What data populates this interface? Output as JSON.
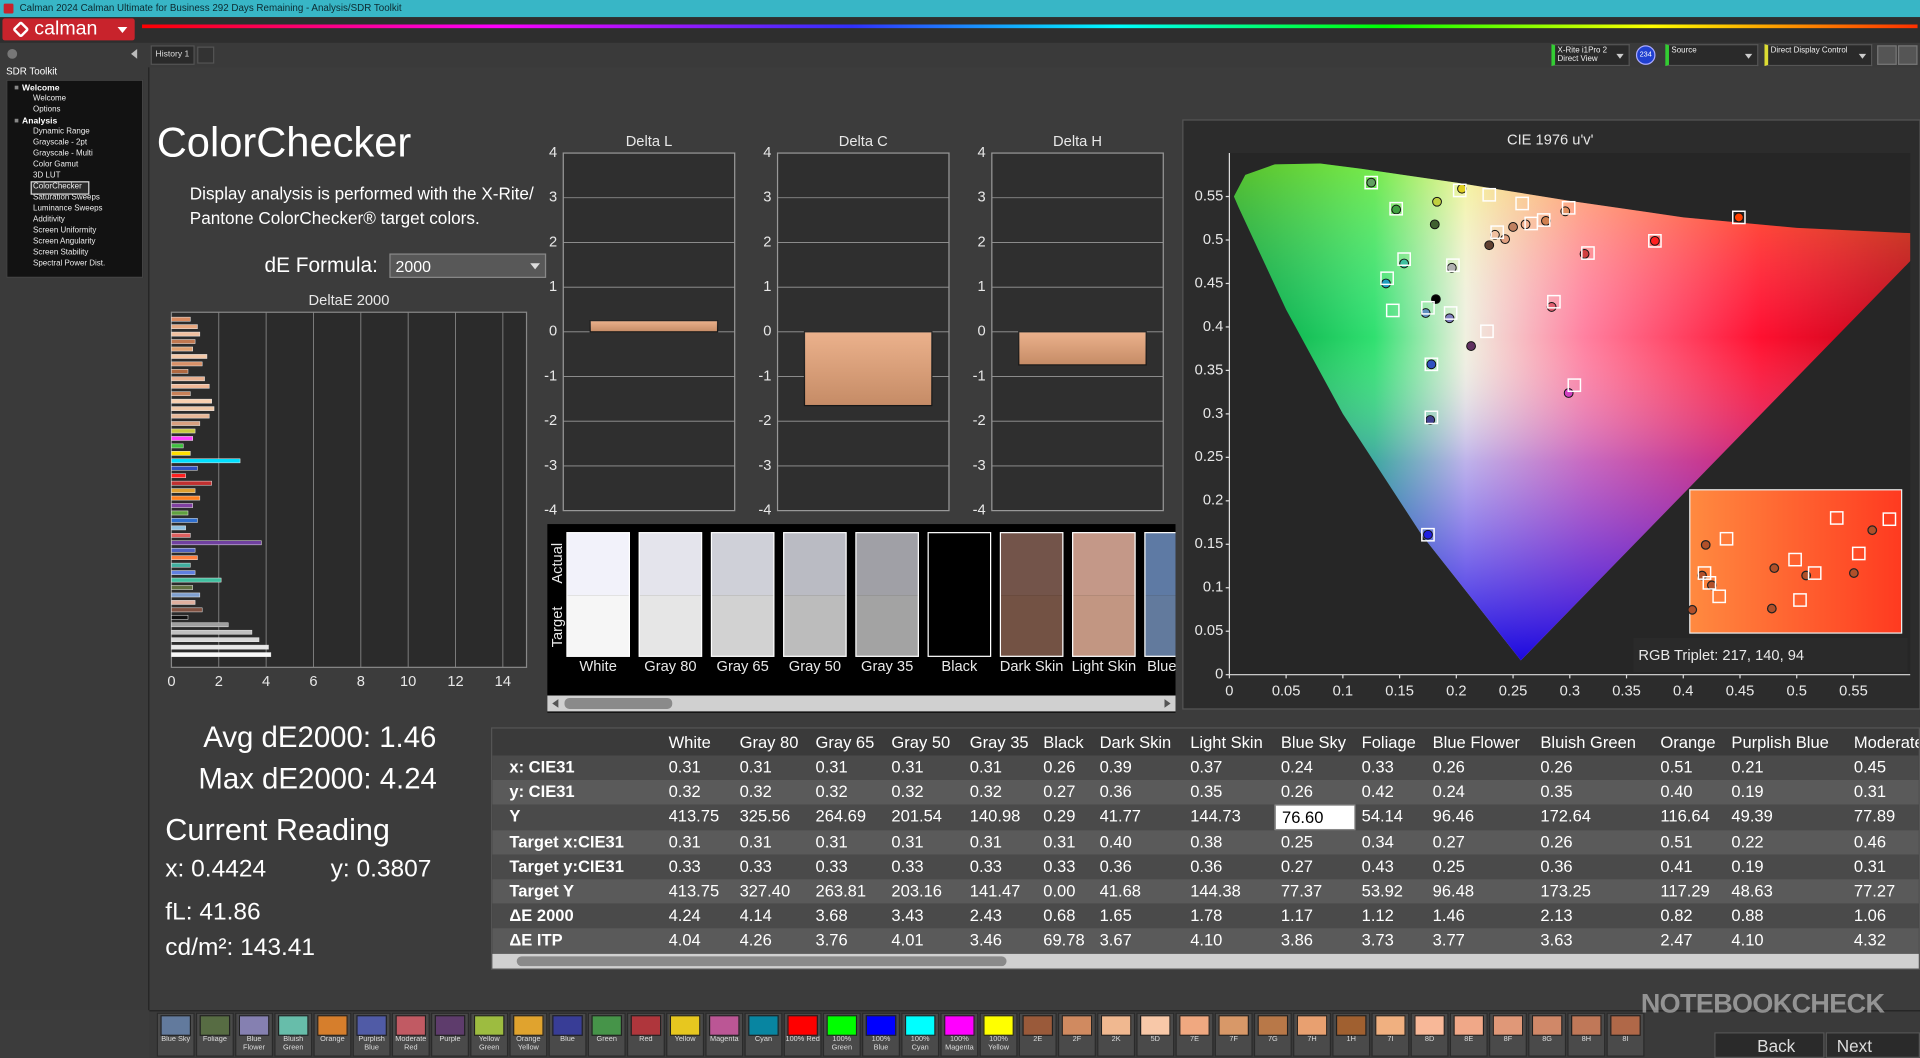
{
  "window": {
    "title": "Calman 2024 Calman Ultimate for Business 292 Days Remaining - Analysis/SDR Toolkit",
    "logo": "calman"
  },
  "tabs": [
    "History 1"
  ],
  "toolbar": {
    "meter": [
      "X-Rite i1Pro 2",
      "Direct View"
    ],
    "badge": "234",
    "source": "Source",
    "display": "Direct Display Control"
  },
  "sidebar": {
    "title": "SDR Toolkit",
    "groups": [
      {
        "name": "Welcome",
        "items": [
          "Welcome",
          "Options"
        ]
      },
      {
        "name": "Analysis",
        "items": [
          "Dynamic Range",
          "Grayscale - 2pt",
          "Grayscale - Multi",
          "Color Gamut",
          "3D LUT",
          "ColorChecker",
          "Saturation Sweeps",
          "Luminance Sweeps",
          "Additivity",
          "Screen Uniformity",
          "Screen Angularity",
          "Screen Stability",
          "Spectral Power Dist."
        ]
      }
    ]
  },
  "page": {
    "heading": "ColorChecker",
    "description": "Display analysis is performed with the X-Rite/ Pantone ColorChecker® target colors.",
    "formula_label": "dE Formula:",
    "formula_value": "2000"
  },
  "deltae_chart": {
    "type": "bar",
    "orientation": "horizontal",
    "title": "DeltaE 2000",
    "xlim": [
      0,
      15
    ],
    "xticks": [
      0,
      2,
      4,
      6,
      8,
      10,
      12,
      14
    ],
    "grid": true,
    "values": [
      0.8,
      1.1,
      1.2,
      1.0,
      0.9,
      1.5,
      1.3,
      0.7,
      1.4,
      1.6,
      0.8,
      1.7,
      1.8,
      1.6,
      1.2,
      1.0,
      0.9,
      0.5,
      0.8,
      2.9,
      1.1,
      0.6,
      1.7,
      1.0,
      1.2,
      0.9,
      0.7,
      1.1,
      0.6,
      0.8,
      3.8,
      1.0,
      1.1,
      0.8,
      1.0,
      2.1,
      0.9,
      1.2,
      1.0,
      1.3,
      0.7,
      2.4,
      3.4,
      3.7,
      4.1,
      4.2
    ],
    "colors": [
      "#d88a60",
      "#e8a880",
      "#f0c0a0",
      "#c07850",
      "#e0a070",
      "#f4c8a8",
      "#d89068",
      "#b06840",
      "#e8b090",
      "#f0b898",
      "#c88058",
      "#f8d0b0",
      "#f0c8a8",
      "#e8b898",
      "#d8a080",
      "#c8c840",
      "#ff40ff",
      "#40c040",
      "#ffe000",
      "#00e0ff",
      "#3050c0",
      "#ff2020",
      "#c03030",
      "#e0a030",
      "#ff8020",
      "#8040a0",
      "#60a040",
      "#3070d0",
      "#90c0e0",
      "#e06060",
      "#7040a0",
      "#5060c0",
      "#ff8040",
      "#40b0a0",
      "#6080e0",
      "#40c0a0",
      "#607040",
      "#80a0d0",
      "#e0b0a0",
      "#805040",
      "#101010",
      "#a0a0a0",
      "#c0c0c0",
      "#d8d8d8",
      "#e8e8e8",
      "#f8f8f8"
    ]
  },
  "delta_charts": [
    {
      "type": "bar",
      "title": "Delta L",
      "values": [
        0.25
      ],
      "color": "#e8a478",
      "ylim": [
        -4,
        4
      ],
      "yticks": [
        -4,
        -3,
        -2,
        -1,
        0,
        1,
        2,
        3,
        4
      ],
      "grid": true
    },
    {
      "type": "bar",
      "title": "Delta C",
      "values": [
        -1.65
      ],
      "color": "#e8a478",
      "ylim": [
        -4,
        4
      ],
      "yticks": [
        -4,
        -3,
        -2,
        -1,
        0,
        1,
        2,
        3,
        4
      ],
      "grid": true
    },
    {
      "type": "bar",
      "title": "Delta H",
      "values": [
        -0.74
      ],
      "color": "#e8a478",
      "ylim": [
        -4,
        4
      ],
      "yticks": [
        -4,
        -3,
        -2,
        -1,
        0,
        1,
        2,
        3,
        4
      ],
      "grid": true
    }
  ],
  "patches": {
    "row_labels": [
      "Actual",
      "Target"
    ],
    "items": [
      {
        "name": "White",
        "actual": "#f2f2fa",
        "target": "#f6f6f6"
      },
      {
        "name": "Gray 80",
        "actual": "#e4e4ec",
        "target": "#e6e6e6"
      },
      {
        "name": "Gray 65",
        "actual": "#cfd0d8",
        "target": "#d2d2d2"
      },
      {
        "name": "Gray 50",
        "actual": "#babbc3",
        "target": "#bcbcbc"
      },
      {
        "name": "Gray 35",
        "actual": "#a0a0a6",
        "target": "#a3a3a3"
      },
      {
        "name": "Black",
        "actual": "#000000",
        "target": "#000000"
      },
      {
        "name": "Dark Skin",
        "actual": "#73544a",
        "target": "#735244"
      },
      {
        "name": "Light Skin",
        "actual": "#c49888",
        "target": "#c29682"
      },
      {
        "name": "Blue Sky",
        "actual": "#5e7aa4",
        "target": "#627a9d"
      }
    ]
  },
  "cie": {
    "type": "scatter",
    "title": "CIE 1976 u'v'",
    "xlim": [
      0,
      0.6
    ],
    "ylim": [
      0,
      0.6
    ],
    "xticks": [
      0,
      0.05,
      0.1,
      0.15,
      0.2,
      0.25,
      0.3,
      0.35,
      0.4,
      0.45,
      0.5,
      0.55
    ],
    "yticks": [
      0,
      0.05,
      0.1,
      0.15,
      0.2,
      0.25,
      0.3,
      0.35,
      0.4,
      0.45,
      0.5,
      0.55
    ],
    "targets": {
      "u": [
        0.125,
        0.147,
        0.203,
        0.229,
        0.258,
        0.299,
        0.197,
        0.154,
        0.139,
        0.144,
        0.175,
        0.195,
        0.227,
        0.286,
        0.316,
        0.375,
        0.449,
        0.178,
        0.178,
        0.304,
        0.175,
        0.236,
        0.266,
        0.277
      ],
      "v": [
        0.566,
        0.536,
        0.557,
        0.552,
        0.542,
        0.537,
        0.471,
        0.478,
        0.456,
        0.419,
        0.422,
        0.416,
        0.395,
        0.429,
        0.485,
        0.499,
        0.526,
        0.357,
        0.296,
        0.333,
        0.161,
        0.509,
        0.519,
        0.523
      ]
    },
    "measured": {
      "u": [
        0.125,
        0.147,
        0.183,
        0.181,
        0.205,
        0.154,
        0.138,
        0.173,
        0.182,
        0.196,
        0.194,
        0.213,
        0.284,
        0.313,
        0.375,
        0.449,
        0.178,
        0.177,
        0.299,
        0.175,
        0.234,
        0.243,
        0.25,
        0.261,
        0.279,
        0.296,
        0.229
      ],
      "v": [
        0.566,
        0.535,
        0.544,
        0.518,
        0.559,
        0.473,
        0.45,
        0.416,
        0.432,
        0.468,
        0.41,
        0.378,
        0.423,
        0.484,
        0.499,
        0.526,
        0.357,
        0.293,
        0.324,
        0.161,
        0.506,
        0.501,
        0.515,
        0.518,
        0.522,
        0.533,
        0.494
      ],
      "colors": [
        "#60a060",
        "#40a040",
        "#c0d040",
        "#406030",
        "#e0d020",
        "#40c0a0",
        "#20a0c0",
        "#6090c0",
        "#000000",
        "#b0b0b0",
        "#8080c0",
        "#603060",
        "#e06070",
        "#d04040",
        "#ff2020",
        "#ff4000",
        "#3050c0",
        "#404090",
        "#d040c0",
        "#2020e0",
        "#f0c0a0",
        "#e0a080",
        "#c08060",
        "#f0b090",
        "#d08050",
        "#e09060",
        "#604030"
      ]
    },
    "readout": "RGB Triplet: 217, 140, 94"
  },
  "summary": {
    "avg": "Avg dE2000: 1.46",
    "max": "Max dE2000: 4.24",
    "current": "Current Reading",
    "x": "x: 0.4424",
    "y": "y: 0.3807",
    "fl": "fL: 41.86",
    "cdm2": "cd/m²: 143.41"
  },
  "table": {
    "columns": [
      "White",
      "Gray 80",
      "Gray 65",
      "Gray 50",
      "Gray 35",
      "Black",
      "Dark Skin",
      "Light Skin",
      "Blue Sky",
      "Foliage",
      "Blue Flower",
      "Bluish Green",
      "Orange",
      "Purplish Blue",
      "Moderate Red"
    ],
    "rows": [
      {
        "label": "x: CIE31",
        "cells": [
          "0.31",
          "0.31",
          "0.31",
          "0.31",
          "0.31",
          "0.26",
          "0.39",
          "0.37",
          "0.24",
          "0.33",
          "0.26",
          "0.26",
          "0.51",
          "0.21",
          "0.45"
        ]
      },
      {
        "label": "y: CIE31",
        "cells": [
          "0.32",
          "0.32",
          "0.32",
          "0.32",
          "0.32",
          "0.27",
          "0.36",
          "0.35",
          "0.26",
          "0.42",
          "0.24",
          "0.35",
          "0.40",
          "0.19",
          "0.31"
        ]
      },
      {
        "label": "Y",
        "cells": [
          "413.75",
          "325.56",
          "264.69",
          "201.54",
          "140.98",
          "0.29",
          "41.77",
          "144.73",
          "76.60",
          "54.14",
          "96.46",
          "172.64",
          "116.64",
          "49.39",
          "77.89"
        ]
      },
      {
        "label": "Target x:CIE31",
        "cells": [
          "0.31",
          "0.31",
          "0.31",
          "0.31",
          "0.31",
          "0.31",
          "0.40",
          "0.38",
          "0.25",
          "0.34",
          "0.27",
          "0.26",
          "0.51",
          "0.22",
          "0.46"
        ]
      },
      {
        "label": "Target y:CIE31",
        "cells": [
          "0.33",
          "0.33",
          "0.33",
          "0.33",
          "0.33",
          "0.33",
          "0.36",
          "0.36",
          "0.27",
          "0.43",
          "0.25",
          "0.36",
          "0.41",
          "0.19",
          "0.31"
        ]
      },
      {
        "label": "Target Y",
        "cells": [
          "413.75",
          "327.40",
          "263.81",
          "203.16",
          "141.47",
          "0.00",
          "41.68",
          "144.38",
          "77.37",
          "53.92",
          "96.48",
          "173.25",
          "117.29",
          "48.63",
          "77.27"
        ]
      },
      {
        "label": "ΔE 2000",
        "cells": [
          "4.24",
          "4.14",
          "3.68",
          "3.43",
          "2.43",
          "0.68",
          "1.65",
          "1.78",
          "1.17",
          "1.12",
          "1.46",
          "2.13",
          "0.82",
          "0.88",
          "1.06"
        ]
      },
      {
        "label": "ΔE ITP",
        "cells": [
          "4.04",
          "4.26",
          "3.76",
          "4.01",
          "3.46",
          "69.78",
          "3.67",
          "4.10",
          "3.86",
          "3.73",
          "3.77",
          "3.63",
          "2.47",
          "4.10",
          "4.32"
        ]
      }
    ]
  },
  "swatches": [
    {
      "label": "Blue Sky",
      "color": "#627a9d"
    },
    {
      "label": "Foliage",
      "color": "#576c43"
    },
    {
      "label": "Blue Flower",
      "color": "#8580b1"
    },
    {
      "label": "Bluish Green",
      "color": "#67bdaa"
    },
    {
      "label": "Orange",
      "color": "#d67e2c"
    },
    {
      "label": "Purplish Blue",
      "color": "#505ba6"
    },
    {
      "label": "Moderate Red",
      "color": "#c15a63"
    },
    {
      "label": "Purple",
      "color": "#5e3c6c"
    },
    {
      "label": "Yellow Green",
      "color": "#9dbc40"
    },
    {
      "label": "Orange Yellow",
      "color": "#e0a32e"
    },
    {
      "label": "Blue",
      "color": "#383d96"
    },
    {
      "label": "Green",
      "color": "#469449"
    },
    {
      "label": "Red",
      "color": "#af363c"
    },
    {
      "label": "Yellow",
      "color": "#e7c71f"
    },
    {
      "label": "Magenta",
      "color": "#bb5695"
    },
    {
      "label": "Cyan",
      "color": "#0885a1"
    },
    {
      "label": "100% Red",
      "color": "#ff0000"
    },
    {
      "label": "100% Green",
      "color": "#00ff00"
    },
    {
      "label": "100% Blue",
      "color": "#0000ff"
    },
    {
      "label": "100% Cyan",
      "color": "#00ffff"
    },
    {
      "label": "100% Magenta",
      "color": "#ff00ff"
    },
    {
      "label": "100% Yellow",
      "color": "#ffff00"
    },
    {
      "label": "2E",
      "color": "#9a5a3a"
    },
    {
      "label": "2F",
      "color": "#d08a60"
    },
    {
      "label": "2K",
      "color": "#f0b890"
    },
    {
      "label": "5D",
      "color": "#f8c8a8"
    },
    {
      "label": "7E",
      "color": "#f0a880"
    },
    {
      "label": "7F",
      "color": "#d89868"
    },
    {
      "label": "7G",
      "color": "#b87848"
    },
    {
      "label": "7H",
      "color": "#e8a070"
    },
    {
      "label": "1H",
      "color": "#a06030"
    },
    {
      "label": "7I",
      "color": "#f0b080"
    },
    {
      "label": "8D",
      "color": "#f8b898"
    },
    {
      "label": "8E",
      "color": "#f0a888"
    },
    {
      "label": "8F",
      "color": "#e09878"
    },
    {
      "label": "8G",
      "color": "#d08868"
    },
    {
      "label": "8H",
      "color": "#c07858"
    },
    {
      "label": "8I",
      "color": "#b06848"
    }
  ],
  "nav": {
    "back": "Back",
    "next": "Next"
  },
  "watermark": "NOTEBOOKCHECK"
}
